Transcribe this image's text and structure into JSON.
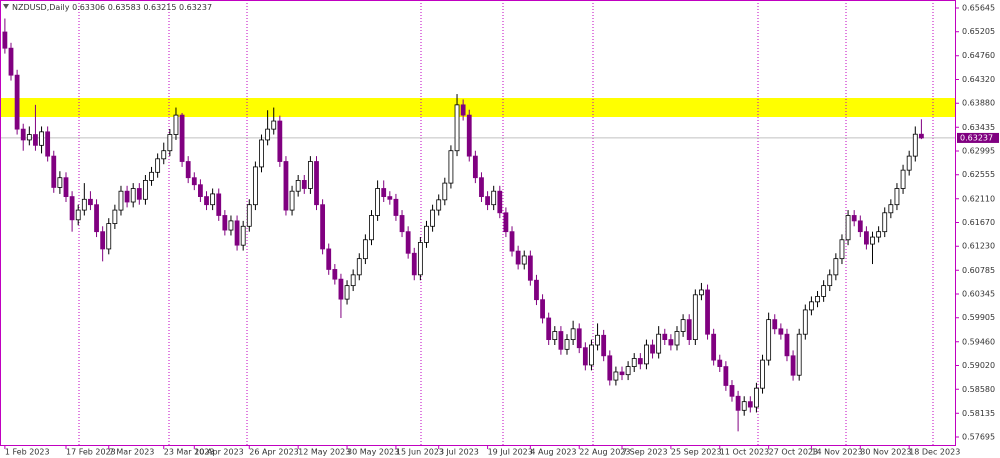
{
  "chart_data": {
    "type": "candlestick",
    "title": "NZDUSD,Daily",
    "up_color": "#ffffff",
    "down_color": "#800080",
    "zone": {
      "range": [
        0.63625,
        0.63977
      ],
      "color": "#ffff00"
    },
    "xlim": [
      -0.8,
      155.5
    ],
    "ylim": [
      0.57547,
      0.65793
    ],
    "yticks": [
      0.65645,
      0.65205,
      {
        "value": 0.6476,
        "label": "0.64760"
      },
      {
        "value": 0.6432,
        "label": "0.64320"
      },
      {
        "value": 0.6388,
        "label": "0.63880"
      },
      0.63435,
      0.62995,
      0.62555,
      {
        "value": 0.6211,
        "label": "0.62110"
      },
      {
        "value": 0.6167,
        "label": "0.61670"
      },
      {
        "value": 0.6123,
        "label": "0.61230"
      },
      0.60785,
      0.60345,
      0.59905,
      {
        "value": 0.5946,
        "label": "0.59460"
      },
      {
        "value": 0.5902,
        "label": "0.59020"
      },
      {
        "value": 0.5858,
        "label": "0.58580"
      },
      0.58135,
      0.57695
    ],
    "xticks": [
      {
        "value": 0,
        "label": "1 Feb 2023"
      },
      {
        "value": 10,
        "label": "17 Feb 2023"
      },
      {
        "value": 17,
        "label": "7 Mar 2023"
      },
      {
        "value": 26,
        "label": "23 Mar 2023"
      },
      {
        "value": 31,
        "label": "10 Apr 2023"
      },
      {
        "value": 40,
        "label": "26 Apr 2023"
      },
      {
        "value": 48,
        "label": "12 May 2023"
      },
      {
        "value": 56,
        "label": "30 May 2023"
      },
      {
        "value": 64,
        "label": "15 Jun 2023"
      },
      {
        "value": 71,
        "label": "3 Jul 2023"
      },
      {
        "value": 79,
        "label": "19 Jul 2023"
      },
      {
        "value": 86,
        "label": "4 Aug 2023"
      },
      {
        "value": 94,
        "label": "22 Aug 2023"
      },
      {
        "value": 101,
        "label": "7 Sep 2023"
      },
      {
        "value": 109,
        "label": "25 Sep 2023"
      },
      {
        "value": 117,
        "label": "11 Oct 2023"
      },
      {
        "value": 125,
        "label": "27 Oct 2023"
      },
      {
        "value": 132,
        "label": "14 Nov 2023"
      },
      {
        "value": 140,
        "label": "30 Nov 2023"
      },
      {
        "value": 148,
        "label": "18 Dec 2023"
      }
    ],
    "candles": [
      [
        0.652,
        0.6545,
        0.648,
        0.649
      ],
      [
        0.649,
        0.65,
        0.643,
        0.644
      ],
      [
        0.644,
        0.645,
        0.633,
        0.634
      ],
      [
        0.634,
        0.635,
        0.63,
        0.632
      ],
      [
        0.632,
        0.6345,
        0.631,
        0.633
      ],
      [
        0.633,
        0.6385,
        0.63,
        0.631
      ],
      [
        0.631,
        0.6345,
        0.6295,
        0.6335
      ],
      [
        0.6335,
        0.6345,
        0.628,
        0.629
      ],
      [
        0.629,
        0.63,
        0.6222,
        0.6232
      ],
      [
        0.6232,
        0.6262,
        0.622,
        0.625
      ],
      [
        0.625,
        0.626,
        0.6205,
        0.6215
      ],
      [
        0.6215,
        0.6225,
        0.615,
        0.6172
      ],
      [
        0.6172,
        0.62,
        0.6162,
        0.619
      ],
      [
        0.619,
        0.624,
        0.618,
        0.621
      ],
      [
        0.621,
        0.6225,
        0.619,
        0.62
      ],
      [
        0.62,
        0.621,
        0.614,
        0.615
      ],
      [
        0.615,
        0.616,
        0.6095,
        0.6118
      ],
      [
        0.6118,
        0.6175,
        0.6108,
        0.6165
      ],
      [
        0.6165,
        0.62,
        0.6155,
        0.619
      ],
      [
        0.619,
        0.6235,
        0.618,
        0.6225
      ],
      [
        0.6225,
        0.6235,
        0.6195,
        0.6205
      ],
      [
        0.6205,
        0.624,
        0.6195,
        0.623
      ],
      [
        0.623,
        0.624,
        0.62,
        0.621
      ],
      [
        0.621,
        0.6255,
        0.62,
        0.6245
      ],
      [
        0.6245,
        0.627,
        0.6235,
        0.626
      ],
      [
        0.626,
        0.6295,
        0.625,
        0.6285
      ],
      [
        0.6285,
        0.6315,
        0.6275,
        0.63
      ],
      [
        0.63,
        0.634,
        0.629,
        0.633
      ],
      [
        0.633,
        0.638,
        0.632,
        0.6366
      ],
      [
        0.6366,
        0.637,
        0.627,
        0.628
      ],
      [
        0.628,
        0.629,
        0.624,
        0.625
      ],
      [
        0.625,
        0.626,
        0.6227,
        0.6237
      ],
      [
        0.6237,
        0.6247,
        0.6205,
        0.6215
      ],
      [
        0.6215,
        0.6225,
        0.619,
        0.62
      ],
      [
        0.62,
        0.623,
        0.619,
        0.622
      ],
      [
        0.622,
        0.623,
        0.617,
        0.618
      ],
      [
        0.618,
        0.619,
        0.6143,
        0.6153
      ],
      [
        0.6153,
        0.618,
        0.6143,
        0.617
      ],
      [
        0.617,
        0.618,
        0.6115,
        0.6125
      ],
      [
        0.6125,
        0.617,
        0.6115,
        0.616
      ],
      [
        0.616,
        0.621,
        0.615,
        0.62
      ],
      [
        0.62,
        0.628,
        0.619,
        0.627
      ],
      [
        0.627,
        0.633,
        0.626,
        0.632
      ],
      [
        0.632,
        0.6375,
        0.631,
        0.634
      ],
      [
        0.634,
        0.638,
        0.633,
        0.6355
      ],
      [
        0.6355,
        0.6365,
        0.627,
        0.628
      ],
      [
        0.628,
        0.629,
        0.618,
        0.619
      ],
      [
        0.619,
        0.6235,
        0.618,
        0.6225
      ],
      [
        0.6225,
        0.6255,
        0.6215,
        0.6245
      ],
      [
        0.6245,
        0.6255,
        0.622,
        0.623
      ],
      [
        0.623,
        0.629,
        0.622,
        0.628
      ],
      [
        0.628,
        0.629,
        0.619,
        0.62
      ],
      [
        0.62,
        0.621,
        0.6108,
        0.6118
      ],
      [
        0.6118,
        0.6128,
        0.607,
        0.608
      ],
      [
        0.608,
        0.609,
        0.6052,
        0.6062
      ],
      [
        0.6062,
        0.6072,
        0.599,
        0.6025
      ],
      [
        0.6025,
        0.606,
        0.6015,
        0.605
      ],
      [
        0.605,
        0.608,
        0.604,
        0.607
      ],
      [
        0.607,
        0.611,
        0.606,
        0.61
      ],
      [
        0.61,
        0.6145,
        0.609,
        0.6135
      ],
      [
        0.6135,
        0.619,
        0.6125,
        0.618
      ],
      [
        0.618,
        0.6245,
        0.617,
        0.623
      ],
      [
        0.623,
        0.6245,
        0.6205,
        0.6215
      ],
      [
        0.6215,
        0.6225,
        0.62,
        0.621
      ],
      [
        0.621,
        0.622,
        0.617,
        0.618
      ],
      [
        0.618,
        0.619,
        0.614,
        0.615
      ],
      [
        0.615,
        0.616,
        0.61,
        0.611
      ],
      [
        0.611,
        0.612,
        0.606,
        0.607
      ],
      [
        0.607,
        0.614,
        0.606,
        0.613
      ],
      [
        0.613,
        0.617,
        0.612,
        0.616
      ],
      [
        0.616,
        0.62,
        0.615,
        0.619
      ],
      [
        0.619,
        0.6219,
        0.618,
        0.6209
      ],
      [
        0.6209,
        0.625,
        0.6199,
        0.624
      ],
      [
        0.624,
        0.631,
        0.623,
        0.63
      ],
      [
        0.63,
        0.6405,
        0.629,
        0.6385
      ],
      [
        0.6385,
        0.6395,
        0.6356,
        0.6366
      ],
      [
        0.6366,
        0.6376,
        0.628,
        0.629
      ],
      [
        0.629,
        0.63,
        0.624,
        0.625
      ],
      [
        0.625,
        0.626,
        0.6205,
        0.6215
      ],
      [
        0.6215,
        0.6225,
        0.619,
        0.62
      ],
      [
        0.62,
        0.6235,
        0.619,
        0.6225
      ],
      [
        0.6225,
        0.6235,
        0.6175,
        0.6185
      ],
      [
        0.6185,
        0.6195,
        0.614,
        0.615
      ],
      [
        0.615,
        0.616,
        0.6104,
        0.6114
      ],
      [
        0.6114,
        0.6124,
        0.608,
        0.609
      ],
      [
        0.609,
        0.6115,
        0.608,
        0.6105
      ],
      [
        0.6105,
        0.6115,
        0.605,
        0.606
      ],
      [
        0.606,
        0.607,
        0.6014,
        0.6024
      ],
      [
        0.6024,
        0.6034,
        0.598,
        0.599
      ],
      [
        0.599,
        0.6,
        0.594,
        0.595
      ],
      [
        0.595,
        0.5975,
        0.594,
        0.5965
      ],
      [
        0.5965,
        0.5975,
        0.5922,
        0.5932
      ],
      [
        0.5932,
        0.596,
        0.5922,
        0.595
      ],
      [
        0.595,
        0.5985,
        0.594,
        0.597
      ],
      [
        0.597,
        0.598,
        0.5925,
        0.5935
      ],
      [
        0.5935,
        0.5945,
        0.5893,
        0.5903
      ],
      [
        0.5903,
        0.595,
        0.5893,
        0.594
      ],
      [
        0.594,
        0.598,
        0.593,
        0.5958
      ],
      [
        0.5958,
        0.5968,
        0.591,
        0.592
      ],
      [
        0.592,
        0.593,
        0.5865,
        0.5875
      ],
      [
        0.5875,
        0.59,
        0.5865,
        0.589
      ],
      [
        0.589,
        0.59,
        0.5875,
        0.5885
      ],
      [
        0.5885,
        0.591,
        0.5875,
        0.59
      ],
      [
        0.59,
        0.5925,
        0.589,
        0.5915
      ],
      [
        0.5915,
        0.5925,
        0.5895,
        0.5905
      ],
      [
        0.5905,
        0.595,
        0.5895,
        0.594
      ],
      [
        0.594,
        0.595,
        0.5915,
        0.5925
      ],
      [
        0.5925,
        0.5975,
        0.5915,
        0.596
      ],
      [
        0.596,
        0.597,
        0.594,
        0.595
      ],
      [
        0.595,
        0.596,
        0.593,
        0.594
      ],
      [
        0.594,
        0.5975,
        0.593,
        0.5965
      ],
      [
        0.5965,
        0.5997,
        0.5955,
        0.5987
      ],
      [
        0.5987,
        0.5997,
        0.594,
        0.595
      ],
      [
        0.595,
        0.6043,
        0.594,
        0.6033
      ],
      [
        0.6033,
        0.6055,
        0.6023,
        0.6042
      ],
      [
        0.6042,
        0.6052,
        0.595,
        0.596
      ],
      [
        0.596,
        0.597,
        0.5902,
        0.5912
      ],
      [
        0.5912,
        0.5922,
        0.589,
        0.59
      ],
      [
        0.59,
        0.591,
        0.5855,
        0.5865
      ],
      [
        0.5865,
        0.5875,
        0.5835,
        0.5845
      ],
      [
        0.5845,
        0.5855,
        0.578,
        0.5819
      ],
      [
        0.5819,
        0.5845,
        0.5809,
        0.5835
      ],
      [
        0.5835,
        0.5845,
        0.5815,
        0.5825
      ],
      [
        0.5825,
        0.587,
        0.5815,
        0.586
      ],
      [
        0.586,
        0.5922,
        0.585,
        0.5912
      ],
      [
        0.5912,
        0.6,
        0.5902,
        0.5987
      ],
      [
        0.5987,
        0.5997,
        0.596,
        0.597
      ],
      [
        0.597,
        0.598,
        0.595,
        0.596
      ],
      [
        0.596,
        0.597,
        0.591,
        0.592
      ],
      [
        0.592,
        0.593,
        0.5874,
        0.5884
      ],
      [
        0.5884,
        0.597,
        0.5874,
        0.596
      ],
      [
        0.596,
        0.6015,
        0.595,
        0.6005
      ],
      [
        0.6005,
        0.603,
        0.5995,
        0.602
      ],
      [
        0.602,
        0.604,
        0.601,
        0.603
      ],
      [
        0.603,
        0.606,
        0.602,
        0.605
      ],
      [
        0.605,
        0.608,
        0.604,
        0.607
      ],
      [
        0.607,
        0.611,
        0.606,
        0.61
      ],
      [
        0.61,
        0.6145,
        0.609,
        0.6135
      ],
      [
        0.6135,
        0.619,
        0.6125,
        0.618
      ],
      [
        0.618,
        0.619,
        0.616,
        0.617
      ],
      [
        0.617,
        0.618,
        0.614,
        0.615
      ],
      [
        0.615,
        0.616,
        0.6117,
        0.6127
      ],
      [
        0.6127,
        0.615,
        0.609,
        0.614
      ],
      [
        0.614,
        0.616,
        0.613,
        0.615
      ],
      [
        0.615,
        0.6195,
        0.614,
        0.6185
      ],
      [
        0.6185,
        0.621,
        0.6175,
        0.62
      ],
      [
        0.62,
        0.624,
        0.619,
        0.623
      ],
      [
        0.623,
        0.6274,
        0.622,
        0.6264
      ],
      [
        0.6264,
        0.63,
        0.6254,
        0.629
      ],
      [
        0.629,
        0.6345,
        0.628,
        0.63306
      ],
      [
        0.63306,
        0.63583,
        0.63215,
        0.63237
      ]
    ]
  }
}
